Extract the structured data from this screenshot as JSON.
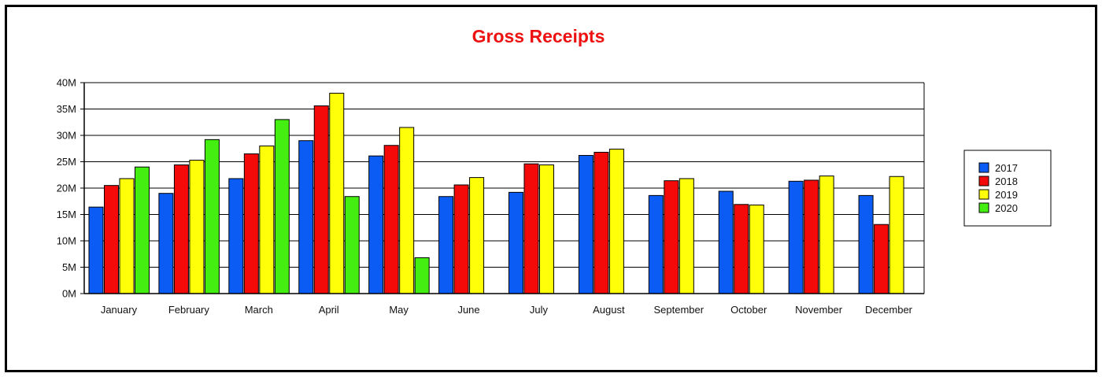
{
  "chart_data": {
    "type": "bar",
    "title": "Gross Receipts",
    "title_color": "#ee1111",
    "xlabel": "",
    "ylabel": "",
    "ylim": [
      0,
      40000000
    ],
    "y_ticks": [
      0,
      5000000,
      10000000,
      15000000,
      20000000,
      25000000,
      30000000,
      35000000,
      40000000
    ],
    "y_tick_labels": [
      "0M",
      "5M",
      "10M",
      "15M",
      "20M",
      "25M",
      "30M",
      "35M",
      "40M"
    ],
    "grid": true,
    "legend_position": "right",
    "categories": [
      "January",
      "February",
      "March",
      "April",
      "May",
      "June",
      "July",
      "August",
      "September",
      "October",
      "November",
      "December"
    ],
    "series": [
      {
        "name": "2017",
        "color": "#0a5cf5",
        "values": [
          16400000,
          19000000,
          21800000,
          29000000,
          26100000,
          18400000,
          19200000,
          26200000,
          18600000,
          19400000,
          21300000,
          18600000
        ]
      },
      {
        "name": "2018",
        "color": "#f50a0a",
        "values": [
          20500000,
          24400000,
          26500000,
          35600000,
          28100000,
          20600000,
          24600000,
          26800000,
          21400000,
          16900000,
          21500000,
          13100000
        ]
      },
      {
        "name": "2019",
        "color": "#ffff0a",
        "values": [
          21800000,
          25300000,
          28000000,
          38000000,
          31500000,
          22000000,
          24400000,
          27400000,
          21800000,
          16800000,
          22300000,
          22200000
        ]
      },
      {
        "name": "2020",
        "color": "#44ee11",
        "values": [
          24000000,
          29200000,
          33000000,
          18400000,
          6800000,
          null,
          null,
          null,
          null,
          null,
          null,
          null
        ]
      }
    ]
  }
}
